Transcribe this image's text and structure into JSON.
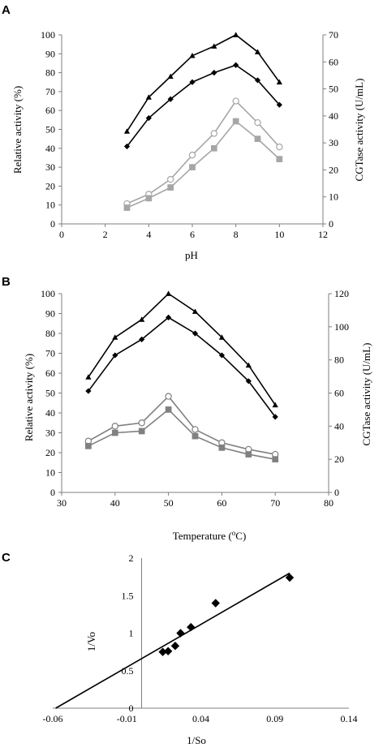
{
  "panels": [
    "A",
    "B",
    "C"
  ],
  "chart_data": [
    {
      "type": "line",
      "xlabel": "pH",
      "ylabel": "Relative activity (%)",
      "y2label": "CGTase activity (U/mL)",
      "xlim": [
        0,
        12
      ],
      "xticks": [
        0,
        2,
        4,
        6,
        8,
        10,
        12
      ],
      "ylim": [
        0,
        100
      ],
      "yticks": [
        0,
        10,
        20,
        30,
        40,
        50,
        60,
        70,
        80,
        90,
        100
      ],
      "y2lim": [
        0,
        70
      ],
      "y2ticks": [
        0,
        10,
        20,
        30,
        40,
        50,
        60,
        70
      ],
      "grid": false,
      "series": [
        {
          "axis": "left",
          "marker": "triangle",
          "color": "#000000",
          "x": [
            3,
            4,
            5,
            6,
            7,
            8,
            9,
            10
          ],
          "values": [
            49,
            67,
            78,
            89,
            94,
            100,
            91,
            75
          ]
        },
        {
          "axis": "left",
          "marker": "diamond",
          "color": "#000000",
          "x": [
            3,
            4,
            5,
            6,
            7,
            8,
            9,
            10
          ],
          "values": [
            41,
            56,
            66,
            75,
            80,
            84,
            76,
            63
          ]
        },
        {
          "axis": "right",
          "marker": "circle",
          "color": "#a6a6a6",
          "x": [
            3,
            4,
            5,
            6,
            7,
            8,
            9,
            10
          ],
          "values": [
            7.5,
            11,
            16.5,
            25.5,
            33.5,
            45.5,
            37.5,
            28.5
          ]
        },
        {
          "axis": "right",
          "marker": "square",
          "color": "#a6a6a6",
          "x": [
            3,
            4,
            5,
            6,
            7,
            8,
            9,
            10
          ],
          "values": [
            6,
            9.5,
            13.5,
            21,
            28,
            38,
            31.5,
            24
          ]
        }
      ]
    },
    {
      "type": "line",
      "xlabel": "Temperature (°C)",
      "xlabel_parts": [
        "Temperature  (",
        "o",
        "C)"
      ],
      "ylabel": "Relative activity (%)",
      "y2label": "CGTase activity (U/mL)",
      "xlim": [
        30,
        80
      ],
      "xticks": [
        30,
        40,
        50,
        60,
        70,
        80
      ],
      "ylim": [
        0,
        100
      ],
      "yticks": [
        0,
        10,
        20,
        30,
        40,
        50,
        60,
        70,
        80,
        90,
        100
      ],
      "y2lim": [
        0,
        120
      ],
      "y2ticks": [
        0,
        20,
        40,
        60,
        80,
        100,
        120
      ],
      "grid": false,
      "series": [
        {
          "axis": "left",
          "marker": "triangle",
          "color": "#000000",
          "x": [
            35,
            40,
            45,
            50,
            55,
            60,
            65,
            70
          ],
          "values": [
            58,
            78,
            87,
            100,
            91,
            78,
            64,
            44
          ]
        },
        {
          "axis": "left",
          "marker": "diamond",
          "color": "#000000",
          "x": [
            35,
            40,
            45,
            50,
            55,
            60,
            65,
            70
          ],
          "values": [
            51,
            69,
            77,
            88,
            80,
            69,
            56,
            38
          ]
        },
        {
          "axis": "right",
          "marker": "circle",
          "color": "#808080",
          "x": [
            35,
            40,
            45,
            50,
            55,
            60,
            65,
            70
          ],
          "values": [
            31,
            40,
            42,
            58,
            38,
            30,
            26,
            23
          ]
        },
        {
          "axis": "right",
          "marker": "square",
          "color": "#808080",
          "x": [
            35,
            40,
            45,
            50,
            55,
            60,
            65,
            70
          ],
          "values": [
            28,
            36,
            37,
            50,
            34,
            27,
            23,
            20
          ]
        }
      ]
    },
    {
      "type": "scatter",
      "xlabel": "1/So",
      "ylabel": "1/Vo",
      "xlim": [
        -0.06,
        0.14
      ],
      "xticks": [
        -0.06,
        -0.01,
        0.04,
        0.09,
        0.14
      ],
      "xtick_labels": [
        "-0.06",
        "-0.01",
        "0.04",
        "0.09",
        "0.14"
      ],
      "ylim": [
        0,
        2
      ],
      "yticks": [
        0,
        0.5,
        1,
        1.5,
        2
      ],
      "ytick_labels": [
        "0",
        "0.5",
        "1",
        "1.5",
        "2"
      ],
      "grid": false,
      "series": [
        {
          "marker": "diamond",
          "color": "#000000",
          "x": [
            0.0143,
            0.0179,
            0.0227,
            0.0263,
            0.0333,
            0.05,
            0.1
          ],
          "values": [
            0.75,
            0.76,
            0.83,
            1.0,
            1.08,
            1.4,
            1.74
          ]
        }
      ],
      "trendline": {
        "x": [
          -0.058,
          0.1
        ],
        "values": [
          0,
          1.8
        ]
      }
    }
  ]
}
